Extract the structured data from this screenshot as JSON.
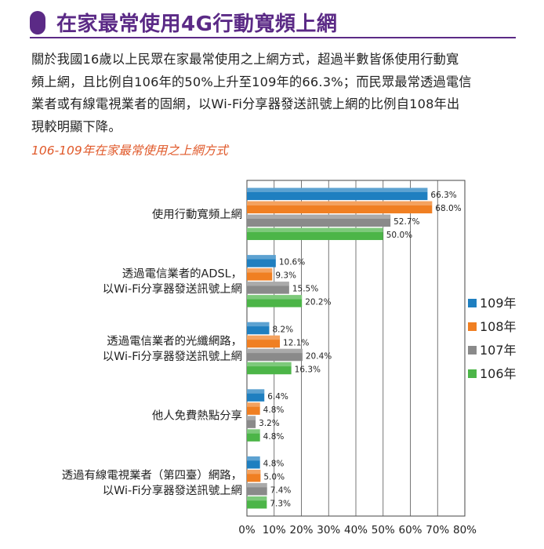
{
  "header": {
    "title": "在家最常使用4G行動寬頻上網"
  },
  "paragraph": {
    "lines": [
      "關於我國16歲以上民眾在家最常使用之上網方式，超過半數皆係使用行動寬",
      "頻上網，且比例自106年的50%上升至109年的66.3%；而民眾最常透過電信",
      "業者或有線電視業者的固網，以Wi-Fi分享器發送訊號上網的比例自108年出",
      "現較明顯下降。"
    ]
  },
  "chart_data": {
    "type": "bar",
    "orientation": "horizontal",
    "title": "106-109年在家最常使用之上網方式",
    "categories": [
      [
        "使用行動寬頻上網"
      ],
      [
        "透過電信業者的ADSL，",
        "以Wi-Fi分享器發送訊號上網"
      ],
      [
        "透過電信業者的光纖網路，",
        "以Wi-Fi分享器發送訊號上網"
      ],
      [
        "他人免費熱點分享"
      ],
      [
        "透過有線電視業者（第四臺）網路，",
        "以Wi-Fi分享器發送訊號上網"
      ]
    ],
    "series": [
      {
        "name": "109年",
        "color": "#1f7fc0",
        "values": [
          66.3,
          10.6,
          8.2,
          6.4,
          4.8
        ],
        "labels": [
          "66.3%",
          "10.6%",
          "8.2%",
          "6.4%",
          "4.8%"
        ]
      },
      {
        "name": "108年",
        "color": "#f07f22",
        "values": [
          68.0,
          9.3,
          12.1,
          4.8,
          5.0
        ],
        "labels": [
          "68.0%",
          "9.3%",
          "12.1%",
          "4.8%",
          "5.0%"
        ]
      },
      {
        "name": "107年",
        "color": "#8a8a8a",
        "values": [
          52.7,
          15.5,
          20.4,
          3.2,
          7.4
        ],
        "labels": [
          "52.7%",
          "15.5%",
          "20.4%",
          "3.2%",
          "7.4%"
        ]
      },
      {
        "name": "106年",
        "color": "#4cb548",
        "values": [
          50.0,
          20.2,
          16.3,
          4.8,
          7.3
        ],
        "labels": [
          "50.0%",
          "20.2%",
          "16.3%",
          "4.8%",
          "7.3%"
        ]
      }
    ],
    "xlim": [
      0,
      80
    ],
    "xticks": [
      "0%",
      "10%",
      "20%",
      "30%",
      "40%",
      "50%",
      "60%",
      "70%",
      "80%"
    ],
    "grid": true,
    "legend": "right"
  }
}
